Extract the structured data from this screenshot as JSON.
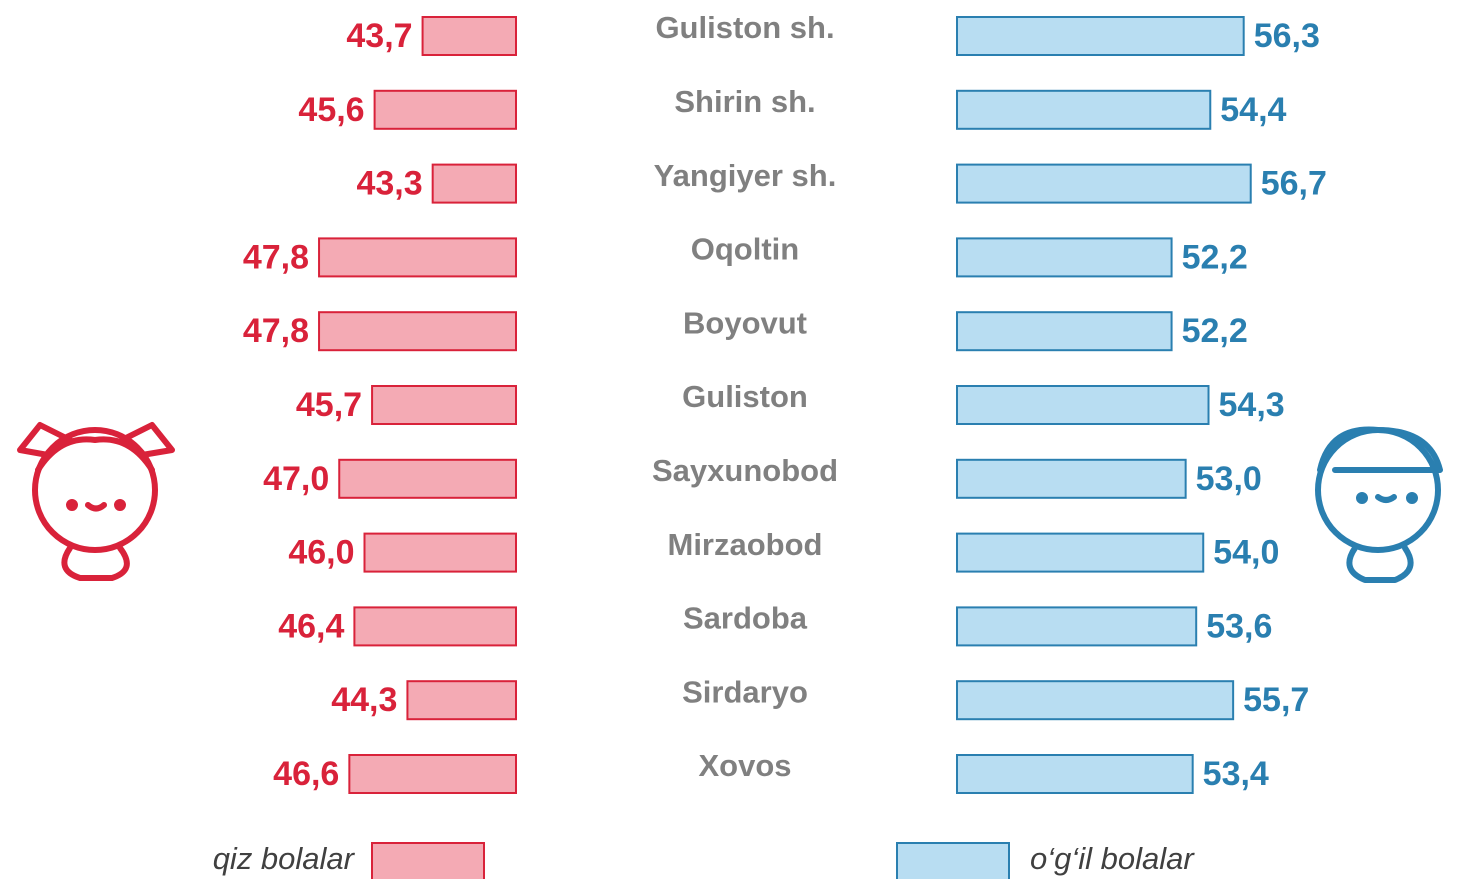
{
  "chart_data": {
    "type": "butterfly-bar",
    "categories": [
      "Guliston sh.",
      "Shirin sh.",
      "Yangiyer sh.",
      "Oqoltin",
      "Boyovut",
      "Guliston",
      "Sayxunobod",
      "Mirzaobod",
      "Sardoba",
      "Sirdaryo",
      "Xovos"
    ],
    "series": [
      {
        "name": "qiz bolalar",
        "color": "#f4aab4",
        "edge": "#d9223a",
        "side": "left",
        "xlim": [
          40,
          48
        ],
        "values": [
          43.7,
          45.6,
          43.3,
          47.8,
          47.8,
          45.7,
          47.0,
          46.0,
          46.4,
          44.3,
          46.6
        ],
        "value_labels": [
          "43,7",
          "45,6",
          "43,3",
          "47,8",
          "47,8",
          "45,7",
          "47,0",
          "46,0",
          "46,4",
          "44,3",
          "46,6"
        ]
      },
      {
        "name": "o‘g‘il bolalar",
        "color": "#b8ddf2",
        "edge": "#2a7fb0",
        "side": "right",
        "xlim": [
          40,
          57
        ],
        "values": [
          56.3,
          54.4,
          56.7,
          52.2,
          52.2,
          54.3,
          53.0,
          54.0,
          53.6,
          55.7,
          53.4
        ],
        "value_labels": [
          "56,3",
          "54,4",
          "56,7",
          "52,2",
          "52,2",
          "54,3",
          "53,0",
          "54,0",
          "53,6",
          "55,7",
          "53,4"
        ]
      }
    ]
  }
}
